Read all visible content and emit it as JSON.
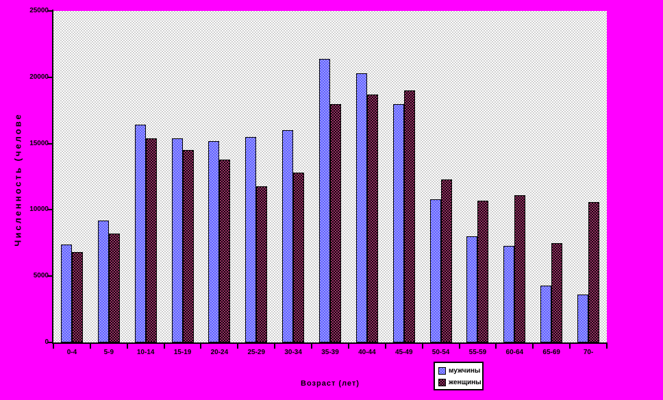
{
  "colors": {
    "canvas_background": "#FF00FF",
    "plot_fill_light": "#FFFFFF",
    "plot_fill_dark": "#CFCFCF",
    "axis_line": "#000000",
    "text": "#000000",
    "legend_background": "#FFFFFF",
    "series_men": "#9999FF",
    "series_men_pattern": "#5F5FFF",
    "series_women": "#993366",
    "series_women_pattern": "#14020C"
  },
  "chart_data": {
    "type": "bar",
    "title": "",
    "xlabel": "Возраст (лет)",
    "ylabel": "Численность (челове",
    "categories": [
      "0-4",
      "5-9",
      "10-14",
      "15-19",
      "20-24",
      "25-29",
      "30-34",
      "35-39",
      "40-44",
      "45-49",
      "50-54",
      "55-59",
      "60-64",
      "65-69",
      "70-"
    ],
    "series": [
      {
        "name": "мужчины",
        "color": "#9999FF",
        "pattern_alt_color": "#5F5FFF",
        "values": [
          7400,
          9200,
          16400,
          15400,
          15200,
          15500,
          16000,
          21400,
          20300,
          18000,
          10800,
          8000,
          7300,
          4300,
          3600
        ]
      },
      {
        "name": "женщины",
        "color": "#993366",
        "pattern_alt_color": "#14020C",
        "values": [
          6800,
          8200,
          15400,
          14500,
          13800,
          11800,
          12800,
          18000,
          18700,
          19000,
          12300,
          10700,
          11100,
          7500,
          10600
        ]
      }
    ],
    "ylim": [
      0,
      25000
    ],
    "yticks": [
      0,
      5000,
      10000,
      15000,
      20000,
      25000
    ],
    "grid": false,
    "legend_position": "bottom-center",
    "plot_background_style": "checkered-gray",
    "page_background": "#FF00FF"
  }
}
